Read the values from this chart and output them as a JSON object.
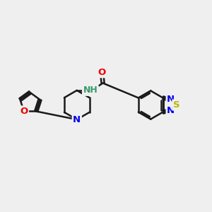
{
  "bg_color": "#efefef",
  "bond_color": "#1a1a1a",
  "bond_width": 1.8,
  "atom_colors": {
    "N": "#0000ee",
    "O": "#ee0000",
    "S": "#b8b800",
    "C": "#1a1a1a",
    "NH": "#3a9a6a"
  },
  "font_size": 9.5
}
